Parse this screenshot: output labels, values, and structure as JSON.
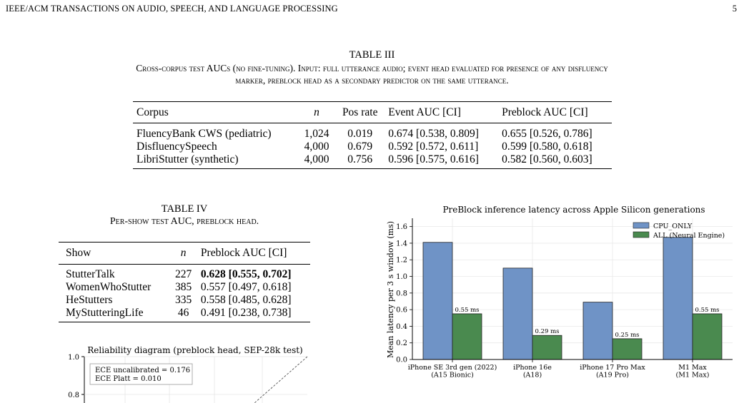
{
  "header": {
    "journal": "IEEE/ACM TRANSACTIONS ON AUDIO, SPEECH, AND LANGUAGE PROCESSING",
    "page": "5"
  },
  "table3": {
    "label": "TABLE III",
    "caption_line1": "Cross-corpus test AUCs (no fine-tuning). Input: full utterance audio; event head evaluated for presence of any disfluency",
    "caption_line2": "marker, preblock head as a secondary predictor on the same utterance.",
    "headers": [
      "Corpus",
      "n",
      "Pos rate",
      "Event AUC [CI]",
      "Preblock AUC [CI]"
    ],
    "rows": [
      [
        "FluencyBank CWS (pediatric)",
        "1,024",
        "0.019",
        "0.674 [0.538, 0.809]",
        "0.655 [0.526, 0.786]"
      ],
      [
        "DisfluencySpeech",
        "4,000",
        "0.679",
        "0.592 [0.572, 0.611]",
        "0.599 [0.580, 0.618]"
      ],
      [
        "LibriStutter (synthetic)",
        "4,000",
        "0.756",
        "0.596 [0.575, 0.616]",
        "0.582 [0.560, 0.603]"
      ]
    ]
  },
  "table4": {
    "label": "TABLE IV",
    "caption": "Per-show test AUC, preblock head.",
    "headers": [
      "Show",
      "n",
      "Preblock AUC [CI]"
    ],
    "rows": [
      [
        "StutterTalk",
        "227",
        "0.628 [0.555, 0.702]"
      ],
      [
        "WomenWhoStutter",
        "385",
        "0.557 [0.497, 0.618]"
      ],
      [
        "HeStutters",
        "335",
        "0.558 [0.485, 0.628]"
      ],
      [
        "MyStutteringLife",
        "46",
        "0.491 [0.238, 0.738]"
      ]
    ]
  },
  "reliability": {
    "title": "Reliability diagram (preblock head, SEP-28k test)",
    "legend_line1": "ECE uncalibrated = 0.176",
    "legend_line2": "ECE Platt = 0.010",
    "yticks": [
      "1.0",
      "0.8"
    ]
  },
  "chart_data": {
    "type": "bar",
    "title": "PreBlock inference latency across Apple Silicon generations",
    "ylabel": "Mean latency per 3 s window (ms)",
    "xlabel": "",
    "categories": [
      [
        "iPhone SE 3rd gen (2022)",
        "(A15 Bionic)"
      ],
      [
        "iPhone 16e",
        "(A18)"
      ],
      [
        "iPhone 17 Pro Max",
        "(A19 Pro)"
      ],
      [
        "M1 Max",
        "(M1 Max)"
      ]
    ],
    "series": [
      {
        "name": "CPU_ONLY",
        "color": "#6f93c6",
        "values": [
          1.41,
          1.1,
          0.69,
          1.47
        ],
        "labels": [
          "",
          "",
          "",
          ""
        ]
      },
      {
        "name": "ALL (Neural Engine)",
        "color": "#4a8a4f",
        "values": [
          0.55,
          0.29,
          0.25,
          0.55
        ],
        "labels": [
          "0.55 ms",
          "0.29 ms",
          "0.25 ms",
          "0.55 ms"
        ]
      }
    ],
    "ylim": [
      0,
      1.7
    ],
    "yticks": [
      "0.0",
      "0.2",
      "0.4",
      "0.6",
      "0.8",
      "1.0",
      "1.2",
      "1.4",
      "1.6"
    ],
    "grid": true,
    "legend": "top-right"
  }
}
